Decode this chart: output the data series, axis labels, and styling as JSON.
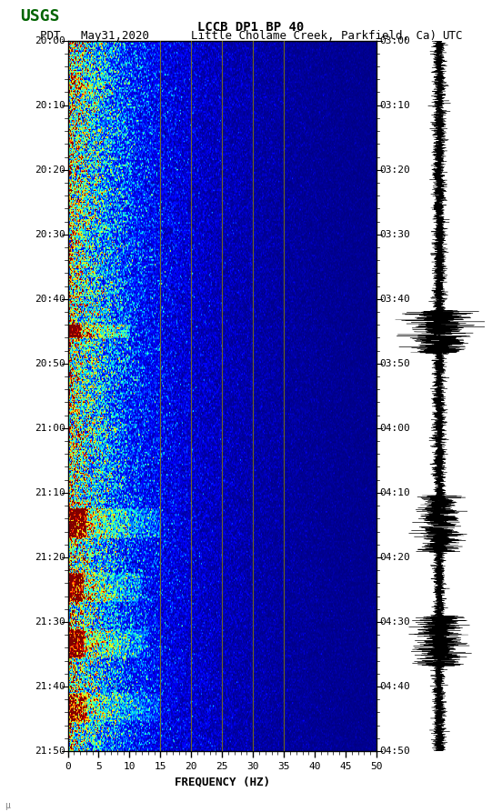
{
  "title_line1": "LCCB DP1 BP 40",
  "title_line2_left": "PDT   May31,2020",
  "title_line2_mid": "Little Cholame Creek, Parkfield, Ca)",
  "title_line2_right": "UTC",
  "xlabel": "FREQUENCY (HZ)",
  "freq_min": 0,
  "freq_max": 50,
  "freq_ticks": [
    0,
    5,
    10,
    15,
    20,
    25,
    30,
    35,
    40,
    45,
    50
  ],
  "time_left_labels": [
    "20:00",
    "20:10",
    "20:20",
    "20:30",
    "20:40",
    "20:50",
    "21:00",
    "21:10",
    "21:20",
    "21:30",
    "21:40",
    "21:50"
  ],
  "time_right_labels": [
    "03:00",
    "03:10",
    "03:20",
    "03:30",
    "03:40",
    "03:50",
    "04:00",
    "04:10",
    "04:20",
    "04:30",
    "04:40",
    "04:50"
  ],
  "n_time_steps": 480,
  "n_freq_steps": 500,
  "vertical_lines_freq": [
    15,
    20,
    25,
    30,
    35
  ],
  "colormap": "jet",
  "bg_color": "white",
  "text_color": "black",
  "logo_color": "#006400",
  "vline_color": "#8B8000",
  "fig_width": 5.52,
  "fig_height": 8.93,
  "dpi": 100
}
